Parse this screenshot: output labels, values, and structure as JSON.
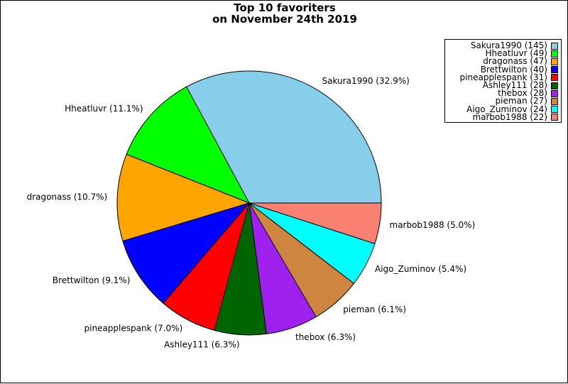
{
  "chart_data": {
    "type": "pie",
    "title": [
      "Top 10 favoriters",
      "on November 24th 2019"
    ],
    "slices": [
      {
        "name": "Sakura1990",
        "value": 145,
        "percent": "32.9%",
        "color": "#87CEEB"
      },
      {
        "name": "Hheatluvr",
        "value": 49,
        "percent": "11.1%",
        "color": "#00FF00"
      },
      {
        "name": "dragonass",
        "value": 47,
        "percent": "10.7%",
        "color": "#FFA500"
      },
      {
        "name": "Brettwilton",
        "value": 40,
        "percent": "9.1%",
        "color": "#0000FF"
      },
      {
        "name": "pineapplespank",
        "value": 31,
        "percent": "7.0%",
        "color": "#FF0000"
      },
      {
        "name": "Ashley111",
        "value": 28,
        "percent": "6.3%",
        "color": "#006400"
      },
      {
        "name": "thebox",
        "value": 28,
        "percent": "6.3%",
        "color": "#A020F0"
      },
      {
        "name": "pieman",
        "value": 27,
        "percent": "6.1%",
        "color": "#CD853F"
      },
      {
        "name": "Aigo_Zuminov",
        "value": 24,
        "percent": "5.4%",
        "color": "#00FFFF"
      },
      {
        "name": "marbob1988",
        "value": 22,
        "percent": "5.0%",
        "color": "#FA8072"
      }
    ],
    "legend_position": "top-right",
    "start_angle": "3 o'clock",
    "direction": "counterclockwise"
  }
}
